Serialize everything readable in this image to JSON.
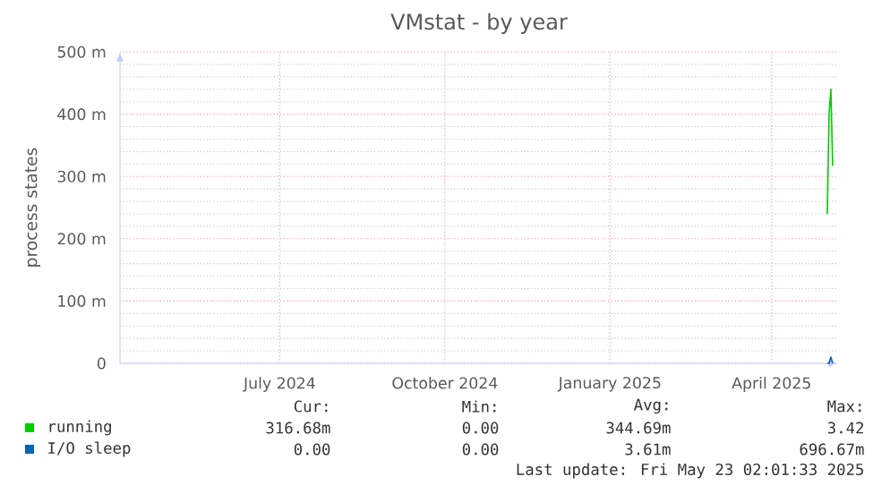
{
  "chart_data": {
    "type": "line",
    "title": "VMstat - by year",
    "ylabel": "process states",
    "x": [
      "2025-05-17",
      "2025-05-18",
      "2025-05-19",
      "2025-05-20"
    ],
    "series": [
      {
        "name": "running",
        "color": "#00cc00",
        "values": [
          240,
          400,
          440,
          317
        ]
      },
      {
        "name": "I/O sleep",
        "color": "#0066b3",
        "values": [
          0,
          0,
          10,
          0
        ]
      }
    ],
    "xlim": [
      "2024-04-18",
      "2025-05-23"
    ],
    "xticks": [
      {
        "value": "2024-07-16",
        "label": "July 2024"
      },
      {
        "value": "2024-10-16",
        "label": "October 2024"
      },
      {
        "value": "2025-01-16",
        "label": "January 2025"
      },
      {
        "value": "2025-04-16",
        "label": "April 2025"
      }
    ],
    "ylim": [
      0,
      500
    ],
    "yticks": [
      0,
      {
        "value": 100,
        "label": "100 m"
      },
      {
        "value": 200,
        "label": "200 m"
      },
      {
        "value": 300,
        "label": "300 m"
      },
      {
        "value": 400,
        "label": "400 m"
      },
      {
        "value": 500,
        "label": "500 m"
      }
    ],
    "grid": true,
    "legend": "bottom",
    "annotations": [
      "Cur:",
      "Min:",
      "Avg:",
      "Max:",
      "316.68m",
      "0.00",
      "344.69m",
      "3.42",
      "0.00",
      "0.00",
      "3.61m",
      "696.67m",
      "Last update: Fri May 23 02:01:33 2025"
    ]
  }
}
